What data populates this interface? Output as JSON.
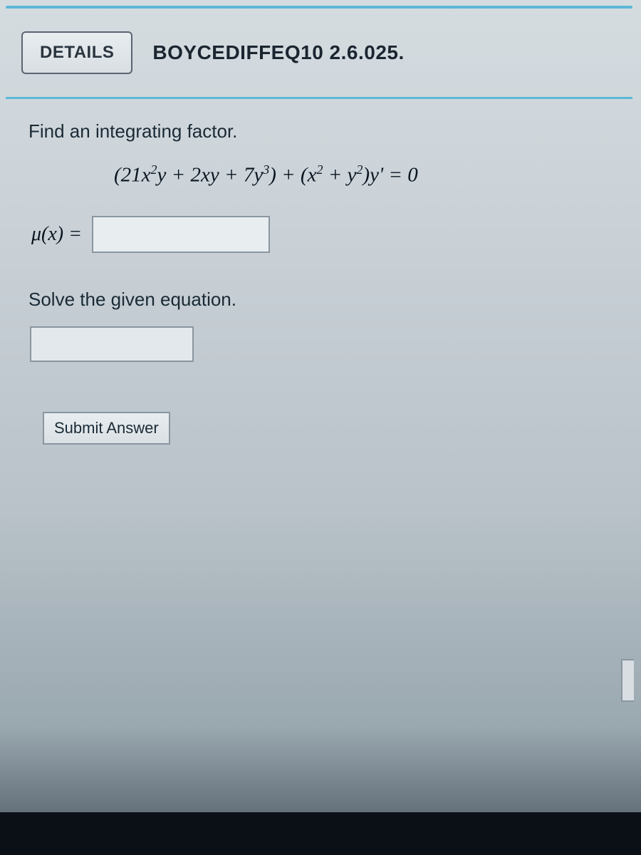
{
  "colors": {
    "accent": "#5db8d8",
    "border": "#8a96a0",
    "button_border": "#5a6570",
    "text_dark": "#1a2a35",
    "text_equation": "#0a1520",
    "input_bg": "#e8edf0"
  },
  "header": {
    "details_button": "DETAILS",
    "problem_reference": "BOYCEDIFFEQ10 2.6.025."
  },
  "content": {
    "instruction1": "Find an integrating factor.",
    "equation": {
      "text": "(21x²y + 2xy + 7y³) + (x² + y²)y' = 0",
      "parts": {
        "p1": "(21",
        "p2": " + 2",
        "p3": " + 7",
        "p4": ") + (",
        "p5": " + ",
        "p6": ")",
        "p7": "' = 0"
      }
    },
    "mu_label": "μ(x) =",
    "instruction2": "Solve the given equation.",
    "submit_label": "Submit Answer"
  },
  "typography": {
    "header_fontsize": 28,
    "instruction_fontsize": 26,
    "equation_fontsize": 29,
    "submit_fontsize": 22
  }
}
